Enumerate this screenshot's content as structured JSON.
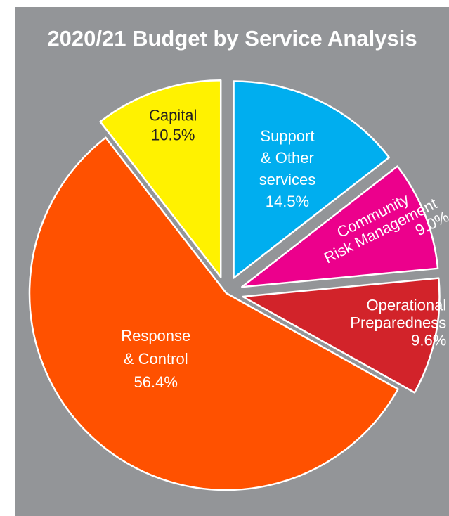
{
  "chart_data": {
    "type": "pie",
    "title": "2020/21 Budget by Service Analysis",
    "slices": [
      {
        "name": "Support & Other services",
        "lines": [
          "Support",
          "& Other",
          "services",
          "14.5%"
        ],
        "value": 14.5,
        "color": "#00aeef",
        "text_color": "#ffffff"
      },
      {
        "name": "Community Risk Management",
        "lines": [
          "Community",
          "Risk Management",
          "9.0%"
        ],
        "value": 9.0,
        "color": "#ec008c",
        "text_color": "#ffffff"
      },
      {
        "name": "Operational Preparedness",
        "lines": [
          "Operational",
          "Preparedness",
          "9.6%"
        ],
        "value": 9.6,
        "color": "#d2232a",
        "text_color": "#ffffff"
      },
      {
        "name": "Response & Control",
        "lines": [
          "Response",
          "& Control",
          "56.4%"
        ],
        "value": 56.4,
        "color": "#ff5100",
        "text_color": "#ffffff"
      },
      {
        "name": "Capital",
        "lines": [
          "Capital",
          "10.5%"
        ],
        "value": 10.5,
        "color": "#fff200",
        "text_color": "#231f20"
      }
    ],
    "exploded": [
      "Support & Other services",
      "Community Risk Management",
      "Operational Preparedness",
      "Capital"
    ],
    "background": "#939598"
  }
}
